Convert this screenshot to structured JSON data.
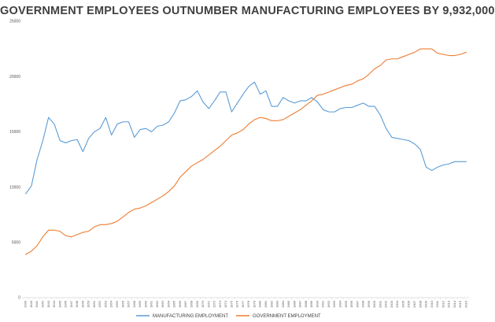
{
  "chart_data": {
    "type": "line",
    "title": "GOVERNMENT EMPLOYEES OUTNUMBER MANUFACTURING EMPLOYEES BY 9,932,000",
    "xlabel": "",
    "ylabel": "",
    "ylim": [
      0,
      25000
    ],
    "yticks": [
      "0",
      "5000",
      "10000",
      "15000",
      "20000",
      "25000"
    ],
    "grid": false,
    "legend_position": "bottom",
    "x": [
      "1939",
      "1940",
      "1941",
      "1942",
      "1943",
      "1944",
      "1945",
      "1946",
      "1947",
      "1948",
      "1949",
      "1950",
      "1951",
      "1952",
      "1953",
      "1954",
      "1955",
      "1956",
      "1957",
      "1958",
      "1959",
      "1960",
      "1961",
      "1962",
      "1963",
      "1964",
      "1965",
      "1966",
      "1967",
      "1968",
      "1969",
      "1970",
      "1971",
      "1972",
      "1973",
      "1974",
      "1975",
      "1976",
      "1977",
      "1978",
      "1979",
      "1980",
      "1981",
      "1982",
      "1983",
      "1984",
      "1985",
      "1986",
      "1987",
      "1988",
      "1989",
      "1990",
      "1991",
      "1992",
      "1993",
      "1994",
      "1995",
      "1996",
      "1997",
      "1998",
      "1999",
      "2000",
      "2001",
      "2002",
      "2003",
      "2004",
      "2005",
      "2006",
      "2007",
      "2008",
      "2009",
      "2010",
      "2011",
      "2012",
      "2013",
      "2014",
      "2015",
      "2016"
    ],
    "series": [
      {
        "name": "MANUFACTURING EMPLOYMENT",
        "color": "#5B9BD5",
        "values": [
          9400,
          10100,
          12500,
          14200,
          16300,
          15700,
          14200,
          14000,
          14200,
          14300,
          13200,
          14400,
          15000,
          15300,
          16300,
          14700,
          15700,
          15900,
          15900,
          14500,
          15200,
          15300,
          15000,
          15500,
          15600,
          15900,
          16700,
          17800,
          17900,
          18200,
          18700,
          17700,
          17100,
          17800,
          18600,
          18600,
          16800,
          17600,
          18400,
          19100,
          19500,
          18400,
          18700,
          17300,
          17300,
          18100,
          17800,
          17600,
          17800,
          17800,
          18100,
          17700,
          17000,
          16800,
          16800,
          17100,
          17200,
          17200,
          17400,
          17600,
          17300,
          17300,
          16500,
          15300,
          14500,
          14400,
          14300,
          14200,
          13900,
          13400,
          11800,
          11500,
          11800,
          12000,
          12100,
          12300,
          12300,
          12300
        ],
        "line_style": "solid"
      },
      {
        "name": "GOVERNMENT EMPLOYMENT",
        "color": "#ED7D31",
        "values": [
          3900,
          4200,
          4700,
          5500,
          6100,
          6100,
          6000,
          5600,
          5500,
          5700,
          5900,
          6000,
          6400,
          6600,
          6600,
          6700,
          6900,
          7300,
          7700,
          8000,
          8100,
          8300,
          8600,
          8900,
          9200,
          9600,
          10100,
          10900,
          11400,
          11900,
          12200,
          12500,
          12900,
          13300,
          13700,
          14200,
          14700,
          14900,
          15200,
          15700,
          16100,
          16300,
          16200,
          16000,
          16000,
          16100,
          16400,
          16700,
          17000,
          17400,
          17800,
          18300,
          18400,
          18600,
          18800,
          19000,
          19200,
          19300,
          19600,
          19800,
          20200,
          20700,
          21000,
          21500,
          21600,
          21600,
          21800,
          22000,
          22200,
          22500,
          22500,
          22500,
          22100,
          22000,
          21900,
          21900,
          22000,
          22200
        ]
      }
    ]
  }
}
